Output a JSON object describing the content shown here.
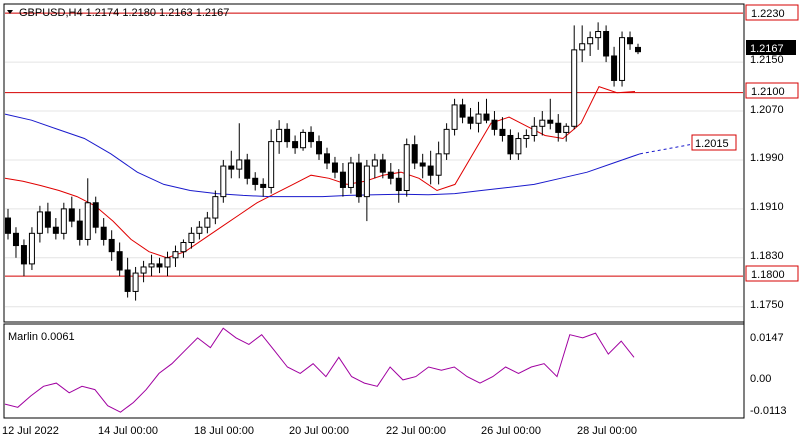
{
  "chart": {
    "header": "GBPUSD,H4  1.2174 1.2180 1.2163 1.2167",
    "price_axis": [
      "1.2230",
      "1.2150",
      "1.2070",
      "1.1990",
      "1.1910",
      "1.1830",
      "1.1750"
    ],
    "time_axis": [
      "12 Jul 2022",
      "14 Jul 00:00",
      "18 Jul 00:00",
      "20 Jul 00:00",
      "22 Jul 00:00",
      "26 Jul 00:00",
      "28 Jul 00:00"
    ],
    "current_price": "1.2167",
    "levels": [
      {
        "price": 1.223,
        "label": "1.2230"
      },
      {
        "price": 1.21,
        "label": "1.2100"
      },
      {
        "price": 1.18,
        "label": "1.1800"
      }
    ],
    "ma_projection": {
      "price": 1.2015,
      "label": "1.2015"
    },
    "colors": {
      "level": "#d40000",
      "candle": "#000000",
      "ma_red": "#e00000",
      "ma_blue": "#1a1acc",
      "osc": "#a000a0"
    }
  },
  "oscillator": {
    "title": "Marlin 0.0061",
    "axis": [
      "0.0147",
      "0.00",
      "-0.0113"
    ]
  },
  "chart_data": {
    "type": "candlestick",
    "symbol": "GBPUSD",
    "timeframe": "H4",
    "ylim": [
      1.1725,
      1.2245
    ],
    "candles": [
      [
        1.1895,
        1.191,
        1.186,
        1.187
      ],
      [
        1.187,
        1.188,
        1.183,
        1.185
      ],
      [
        1.185,
        1.186,
        1.18,
        1.182
      ],
      [
        1.182,
        1.188,
        1.181,
        1.187
      ],
      [
        1.187,
        1.1915,
        1.1855,
        1.1905
      ],
      [
        1.1905,
        1.192,
        1.187,
        1.188
      ],
      [
        1.188,
        1.1895,
        1.186,
        1.187
      ],
      [
        1.187,
        1.192,
        1.186,
        1.191
      ],
      [
        1.191,
        1.193,
        1.188,
        1.189
      ],
      [
        1.189,
        1.191,
        1.185,
        1.186
      ],
      [
        1.186,
        1.196,
        1.185,
        1.192
      ],
      [
        1.192,
        1.193,
        1.187,
        1.188
      ],
      [
        1.188,
        1.1895,
        1.185,
        1.186
      ],
      [
        1.186,
        1.1875,
        1.1825,
        1.184
      ],
      [
        1.184,
        1.1855,
        1.18,
        1.181
      ],
      [
        1.181,
        1.183,
        1.1765,
        1.1775
      ],
      [
        1.1775,
        1.1815,
        1.176,
        1.1805
      ],
      [
        1.1805,
        1.1825,
        1.179,
        1.1815
      ],
      [
        1.1815,
        1.1835,
        1.18,
        1.182
      ],
      [
        1.182,
        1.183,
        1.1805,
        1.1815
      ],
      [
        1.1815,
        1.184,
        1.18,
        1.183
      ],
      [
        1.183,
        1.185,
        1.1815,
        1.184
      ],
      [
        1.184,
        1.186,
        1.183,
        1.1855
      ],
      [
        1.1855,
        1.188,
        1.1845,
        1.187
      ],
      [
        1.187,
        1.189,
        1.186,
        1.188
      ],
      [
        1.188,
        1.1905,
        1.187,
        1.1895
      ],
      [
        1.1895,
        1.194,
        1.1885,
        1.193
      ],
      [
        1.193,
        1.199,
        1.192,
        1.198
      ],
      [
        1.198,
        1.2005,
        1.196,
        1.1975
      ],
      [
        1.1975,
        1.205,
        1.196,
        1.199
      ],
      [
        1.199,
        1.2,
        1.195,
        1.196
      ],
      [
        1.196,
        1.197,
        1.194,
        1.195
      ],
      [
        1.195,
        1.196,
        1.193,
        1.1945
      ],
      [
        1.1945,
        1.204,
        1.1935,
        1.202
      ],
      [
        1.202,
        1.2055,
        1.2,
        1.204
      ],
      [
        1.204,
        1.205,
        1.201,
        1.202
      ],
      [
        1.202,
        1.203,
        1.2,
        1.201
      ],
      [
        1.201,
        1.204,
        1.2005,
        1.2035
      ],
      [
        1.2035,
        1.2045,
        1.201,
        1.202
      ],
      [
        1.202,
        1.203,
        1.199,
        1.2
      ],
      [
        1.2,
        1.201,
        1.1975,
        1.1985
      ],
      [
        1.1985,
        1.1995,
        1.196,
        1.197
      ],
      [
        1.197,
        1.1985,
        1.193,
        1.1945
      ],
      [
        1.1945,
        1.1995,
        1.1935,
        1.1985
      ],
      [
        1.1985,
        1.2,
        1.192,
        1.193
      ],
      [
        1.193,
        1.199,
        1.189,
        1.198
      ],
      [
        1.198,
        1.2,
        1.196,
        1.199
      ],
      [
        1.199,
        1.2,
        1.196,
        1.197
      ],
      [
        1.197,
        1.1985,
        1.195,
        1.196
      ],
      [
        1.196,
        1.1975,
        1.192,
        1.194
      ],
      [
        1.194,
        1.2025,
        1.193,
        1.2015
      ],
      [
        1.2015,
        1.203,
        1.1975,
        1.1985
      ],
      [
        1.1985,
        1.2,
        1.196,
        1.198
      ],
      [
        1.198,
        1.2005,
        1.195,
        1.1965
      ],
      [
        1.1965,
        1.202,
        1.195,
        1.2
      ],
      [
        1.2,
        1.205,
        1.199,
        1.204
      ],
      [
        1.204,
        1.209,
        1.203,
        1.208
      ],
      [
        1.208,
        1.209,
        1.205,
        1.206
      ],
      [
        1.206,
        1.2075,
        1.204,
        1.205
      ],
      [
        1.205,
        1.2085,
        1.2035,
        1.2065
      ],
      [
        1.2065,
        1.209,
        1.205,
        1.2055
      ],
      [
        1.2055,
        1.207,
        1.203,
        1.204
      ],
      [
        1.204,
        1.206,
        1.202,
        1.203
      ],
      [
        1.203,
        1.204,
        1.199,
        1.2
      ],
      [
        1.2,
        1.2035,
        1.199,
        1.2025
      ],
      [
        1.2025,
        1.204,
        1.201,
        1.203
      ],
      [
        1.203,
        1.206,
        1.202,
        1.2045
      ],
      [
        1.2045,
        1.207,
        1.203,
        1.2055
      ],
      [
        1.2055,
        1.209,
        1.204,
        1.205
      ],
      [
        1.205,
        1.2065,
        1.202,
        1.2035
      ],
      [
        1.2035,
        1.205,
        1.202,
        1.2045
      ],
      [
        1.2045,
        1.221,
        1.204,
        1.217
      ],
      [
        1.217,
        1.221,
        1.215,
        1.218
      ],
      [
        1.218,
        1.22,
        1.216,
        1.219
      ],
      [
        1.219,
        1.2215,
        1.217,
        1.22
      ],
      [
        1.22,
        1.221,
        1.215,
        1.216
      ],
      [
        1.216,
        1.2175,
        1.211,
        1.212
      ],
      [
        1.212,
        1.22,
        1.211,
        1.219
      ],
      [
        1.219,
        1.22,
        1.217,
        1.218
      ],
      [
        1.2174,
        1.218,
        1.2163,
        1.2167
      ]
    ],
    "ma_red": [
      1.196,
      1.1955,
      1.1948,
      1.194,
      1.193,
      1.1915,
      1.189,
      1.186,
      1.184,
      1.183,
      1.184,
      1.186,
      1.188,
      1.19,
      1.192,
      1.1935,
      1.195,
      1.1965,
      1.196,
      1.195,
      1.1955,
      1.1965,
      1.197,
      1.196,
      1.194,
      1.195,
      1.2,
      1.205,
      1.206,
      1.2045,
      1.203,
      1.2025,
      1.205,
      1.211,
      1.21,
      1.2102
    ],
    "ma_blue": [
      1.2065,
      1.2055,
      1.204,
      1.2025,
      1.2,
      1.197,
      1.195,
      1.194,
      1.1935,
      1.1932,
      1.193,
      1.193,
      1.193,
      1.1932,
      1.1933,
      1.1934,
      1.1933,
      1.1935,
      1.194,
      1.1945,
      1.195,
      1.196,
      1.197,
      1.1985,
      1.2
    ],
    "oscillator": [
      -0.0085,
      -0.0095,
      -0.006,
      -0.003,
      -0.002,
      -0.005,
      -0.003,
      -0.004,
      -0.009,
      -0.011,
      -0.008,
      -0.004,
      0.001,
      0.004,
      0.008,
      0.012,
      0.009,
      0.015,
      0.012,
      0.01,
      0.013,
      0.008,
      0.003,
      0.001,
      0.004,
      0.0,
      0.006,
      0.0,
      -0.002,
      -0.003,
      0.003,
      -0.001,
      0.0,
      0.003,
      0.002,
      0.003,
      0.0,
      -0.002,
      0.0,
      0.003,
      0.001,
      0.003,
      0.004,
      0.0,
      0.013,
      0.012,
      0.0135,
      0.007,
      0.011,
      0.006
    ]
  }
}
